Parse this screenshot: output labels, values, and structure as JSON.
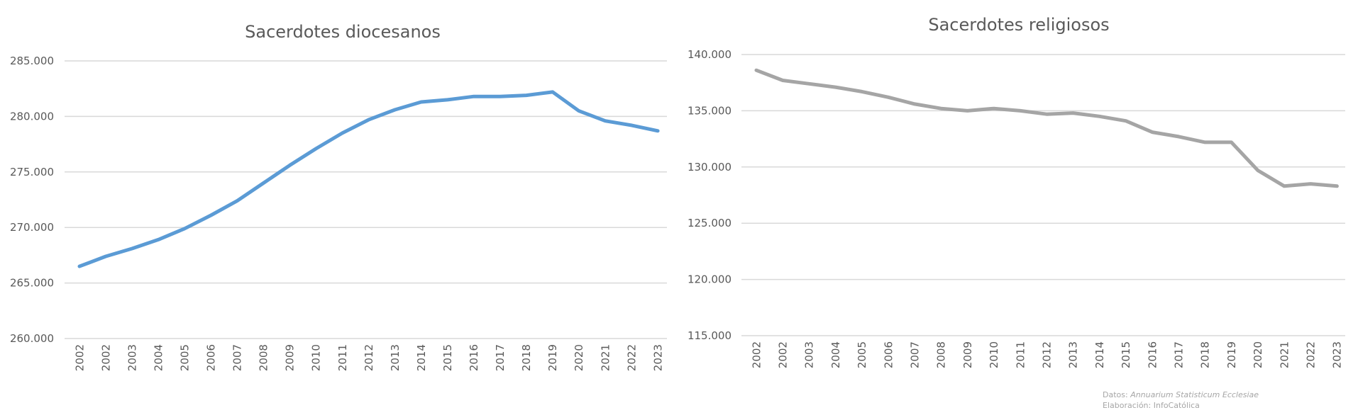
{
  "chart_data": [
    {
      "type": "line",
      "title": "Sacerdotes diocesanos",
      "categories": [
        "2002",
        "2002",
        "2003",
        "2004",
        "2005",
        "2006",
        "2007",
        "2008",
        "2009",
        "2010",
        "2011",
        "2012",
        "2013",
        "2014",
        "2015",
        "2016",
        "2017",
        "2018",
        "2019",
        "2020",
        "2021",
        "2022",
        "2023"
      ],
      "values": [
        266500,
        267400,
        268100,
        268900,
        269900,
        271100,
        272400,
        274000,
        275600,
        277100,
        278500,
        279700,
        280600,
        281300,
        281500,
        281800,
        281800,
        281900,
        282200,
        280500,
        279600,
        279200,
        278700
      ],
      "ylim": [
        260000,
        285000
      ],
      "yticks": [
        "260.000",
        "265.000",
        "270.000",
        "275.000",
        "280.000",
        "285.000"
      ],
      "grid": true,
      "color": "#5b9bd5"
    },
    {
      "type": "line",
      "title": "Sacerdotes religiosos",
      "categories": [
        "2002",
        "2002",
        "2003",
        "2004",
        "2005",
        "2006",
        "2007",
        "2008",
        "2009",
        "2010",
        "2011",
        "2012",
        "2013",
        "2014",
        "2015",
        "2016",
        "2017",
        "2018",
        "2019",
        "2020",
        "2021",
        "2022",
        "2023"
      ],
      "values": [
        138600,
        137700,
        137400,
        137100,
        136700,
        136200,
        135600,
        135200,
        135000,
        135200,
        135000,
        134700,
        134800,
        134500,
        134100,
        133100,
        132700,
        132200,
        132200,
        129700,
        128300,
        128500,
        128300
      ],
      "ylim": [
        115000,
        140000
      ],
      "yticks": [
        "115.000",
        "120.000",
        "125.000",
        "130.000",
        "135.000",
        "140.000"
      ],
      "grid": true,
      "color": "#a5a5a5"
    }
  ],
  "credits": {
    "line1_prefix": "Datos: ",
    "line1_source": "Annuarium Statisticum Ecclesiae",
    "line2": "Elaboración: InfoCatólica"
  }
}
